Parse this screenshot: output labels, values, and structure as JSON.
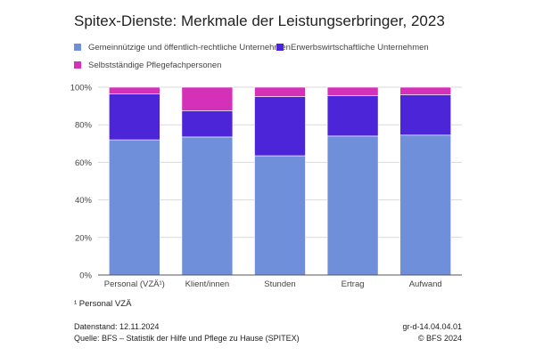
{
  "title": "Spitex-Dienste: Merkmale der Leistungserbringer, 2023",
  "colors": {
    "gemeinnuetzig": "#6f8fdb",
    "erwerb": "#4d25d8",
    "selbst": "#d431b8",
    "grid": "#d9d9d9",
    "axis": "#555555"
  },
  "chart_data": {
    "type": "bar",
    "stacked": true,
    "categories": [
      "Personal (VZÄ¹)",
      "Klient/innen",
      "Stunden",
      "Ertrag",
      "Aufwand"
    ],
    "series": [
      {
        "name": "Gemeinnützige und öffentlich-rechtliche Unternehmen",
        "values": [
          72,
          73.5,
          63.5,
          74,
          74.5
        ],
        "color_key": "gemeinnuetzig"
      },
      {
        "name": "Erwerbswirtschaftliche Unternehmen",
        "values": [
          24.5,
          14,
          31.5,
          21.5,
          21.5
        ],
        "color_key": "erwerb"
      },
      {
        "name": "Selbstständige Pflegefachpersonen",
        "values": [
          3.5,
          12.5,
          5,
          4.5,
          4
        ],
        "color_key": "selbst"
      }
    ],
    "ylim": [
      0,
      100
    ],
    "yticks": [
      "0%",
      "20%",
      "40%",
      "60%",
      "80%",
      "100%"
    ],
    "grid": true,
    "legend_position": "top"
  },
  "footnote": "¹ Personal VZÄ",
  "footer": {
    "datenstand": "Datenstand: 12.11.2024",
    "quelle": "Quelle: BFS – Statistik der Hilfe und Pflege zu Hause (SPITEX)",
    "code": "gr-d-14.04.04.01",
    "copyright": "© BFS 2024"
  }
}
